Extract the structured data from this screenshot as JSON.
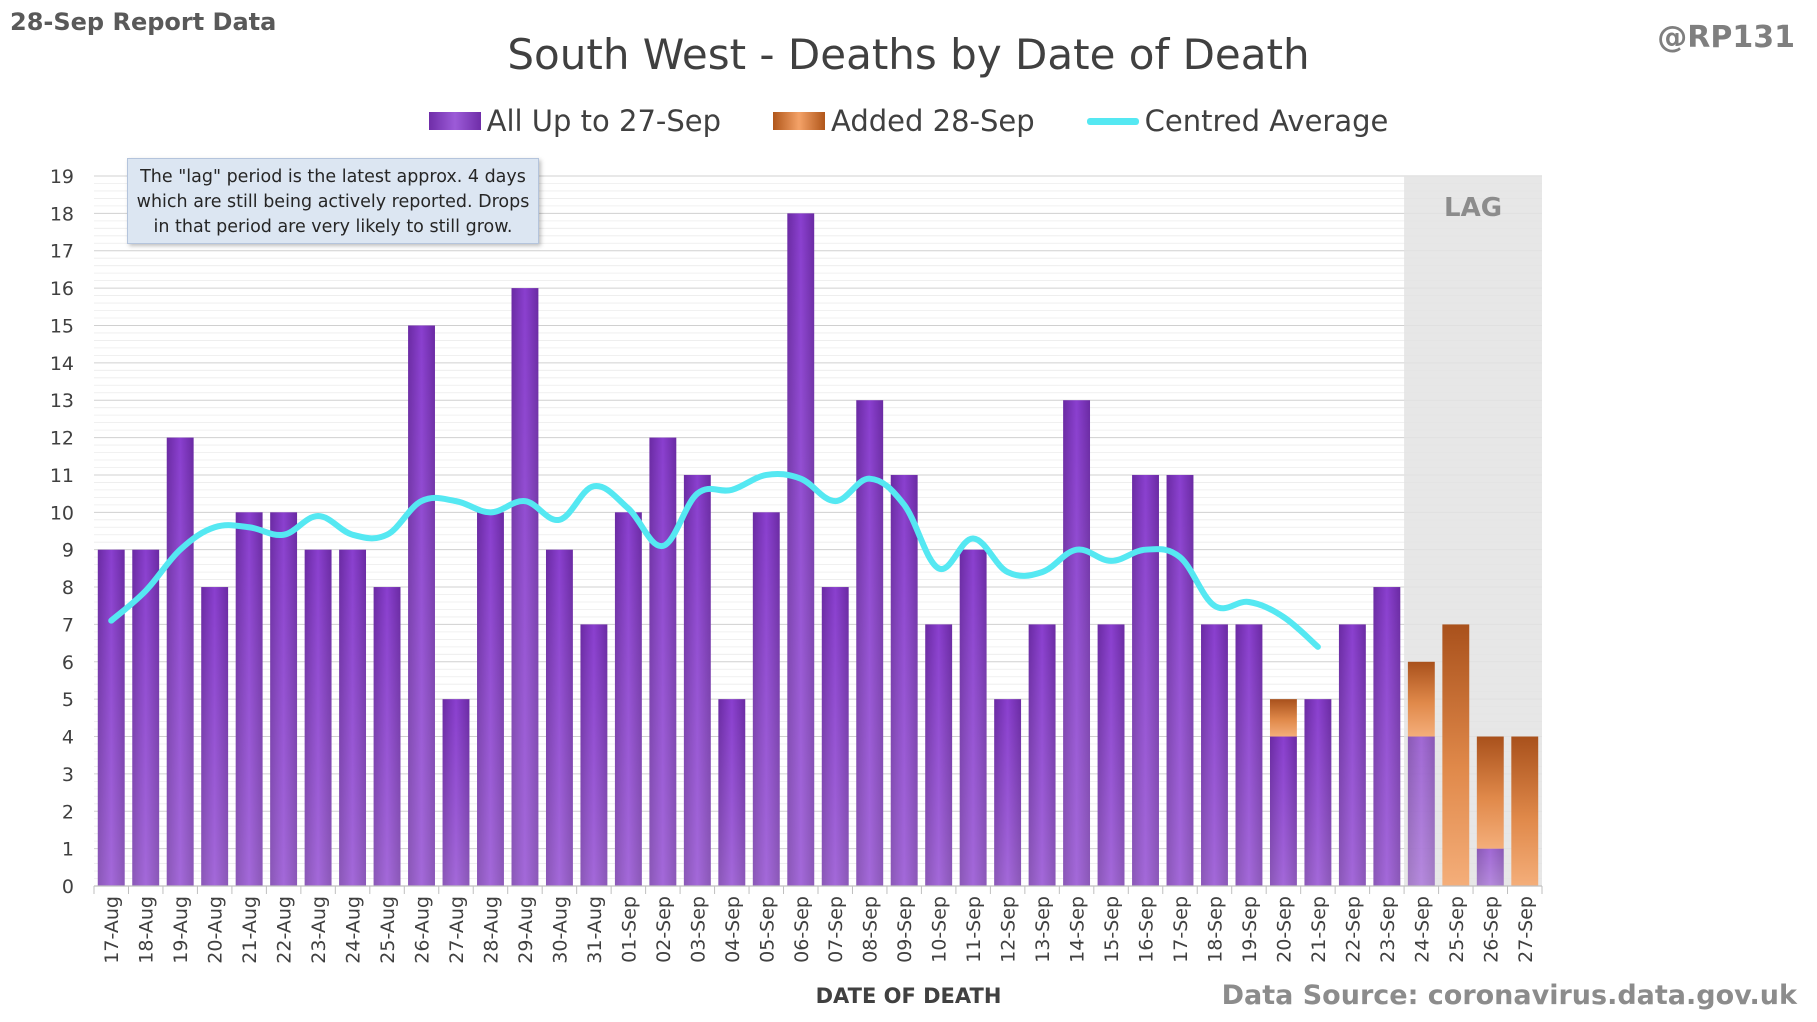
{
  "report_label": "28-Sep Report Data",
  "author": "@RP131",
  "note": "The \"lag\" period is the latest approx. 4 days which are still being actively reported. Drops in that period are very likely to still grow.",
  "source": "Data Source: coronavirus.data.gov.uk",
  "colors": {
    "existing": "#7b35c0",
    "added": "#e08a4a",
    "average": "#55e8f2",
    "lag_shade": "#e3e3e3"
  },
  "chart_data": {
    "type": "bar",
    "stacked": true,
    "title": "South West - Deaths by Date of Death",
    "xlabel": "DATE OF DEATH",
    "ylabel": "",
    "ylim": [
      0,
      19
    ],
    "yticks": [
      0,
      1,
      2,
      3,
      4,
      5,
      6,
      7,
      8,
      9,
      10,
      11,
      12,
      13,
      14,
      15,
      16,
      17,
      18,
      19
    ],
    "grid": true,
    "legend_position": "top",
    "categories": [
      "17-Aug",
      "18-Aug",
      "19-Aug",
      "20-Aug",
      "21-Aug",
      "22-Aug",
      "23-Aug",
      "24-Aug",
      "25-Aug",
      "26-Aug",
      "27-Aug",
      "28-Aug",
      "29-Aug",
      "30-Aug",
      "31-Aug",
      "01-Sep",
      "02-Sep",
      "03-Sep",
      "04-Sep",
      "05-Sep",
      "06-Sep",
      "07-Sep",
      "08-Sep",
      "09-Sep",
      "10-Sep",
      "11-Sep",
      "12-Sep",
      "13-Sep",
      "14-Sep",
      "15-Sep",
      "16-Sep",
      "17-Sep",
      "18-Sep",
      "19-Sep",
      "20-Sep",
      "21-Sep",
      "22-Sep",
      "23-Sep",
      "24-Sep",
      "25-Sep",
      "26-Sep",
      "27-Sep"
    ],
    "series": [
      {
        "name": "All Up to 27-Sep",
        "kind": "bar",
        "values": [
          9,
          9,
          12,
          8,
          10,
          10,
          9,
          9,
          8,
          15,
          5,
          10,
          16,
          9,
          7,
          10,
          12,
          11,
          5,
          10,
          18,
          8,
          13,
          11,
          7,
          9,
          5,
          7,
          13,
          7,
          11,
          11,
          7,
          7,
          4,
          5,
          7,
          8,
          4,
          0,
          1,
          0
        ]
      },
      {
        "name": "Added 28-Sep",
        "kind": "bar",
        "values": [
          0,
          0,
          0,
          0,
          0,
          0,
          0,
          0,
          0,
          0,
          0,
          0,
          0,
          0,
          0,
          0,
          0,
          0,
          0,
          0,
          0,
          0,
          0,
          0,
          0,
          0,
          0,
          0,
          0,
          0,
          0,
          0,
          0,
          0,
          1,
          0,
          0,
          0,
          2,
          7,
          3,
          4
        ]
      },
      {
        "name": "Centred Average",
        "kind": "line",
        "values": [
          7.1,
          7.9,
          9.0,
          9.6,
          9.6,
          9.4,
          9.9,
          9.4,
          9.4,
          10.3,
          10.3,
          10.0,
          10.3,
          9.8,
          10.7,
          10.1,
          9.1,
          10.5,
          10.6,
          11.0,
          10.9,
          10.3,
          10.9,
          10.2,
          8.5,
          9.3,
          8.4,
          8.4,
          9.0,
          8.7,
          9.0,
          8.8,
          7.5,
          7.6,
          7.2,
          6.4,
          null,
          null,
          null,
          null,
          null,
          null
        ]
      }
    ],
    "lag_region": {
      "label": "LAG",
      "from": "24-Sep",
      "to": "27-Sep"
    }
  }
}
